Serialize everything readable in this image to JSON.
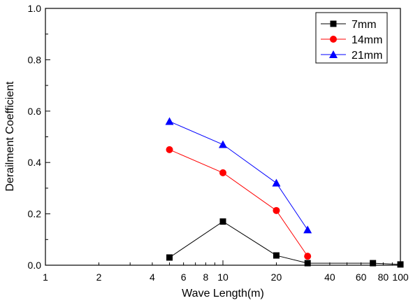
{
  "chart_data": {
    "type": "line",
    "title": "",
    "xlabel": "Wave Length(m)",
    "ylabel": "Derailment Coefficient",
    "x_scale": "log",
    "xlim": [
      1,
      100
    ],
    "ylim": [
      0.0,
      1.0
    ],
    "x_ticks": [
      {
        "value": 1,
        "label": "1"
      },
      {
        "value": 2,
        "label": "2"
      },
      {
        "value": 4,
        "label": "4"
      },
      {
        "value": 6,
        "label": "6"
      },
      {
        "value": 8,
        "label": "8"
      },
      {
        "value": 10,
        "label": "10"
      },
      {
        "value": 20,
        "label": "20"
      },
      {
        "value": 40,
        "label": "40"
      },
      {
        "value": 60,
        "label": "60"
      },
      {
        "value": 80,
        "label": "80"
      },
      {
        "value": 100,
        "label": "100"
      }
    ],
    "y_ticks": [
      {
        "value": 0.0,
        "label": "0.0"
      },
      {
        "value": 0.2,
        "label": "0.2"
      },
      {
        "value": 0.4,
        "label": "0.4"
      },
      {
        "value": 0.6,
        "label": "0.6"
      },
      {
        "value": 0.8,
        "label": "0.8"
      },
      {
        "value": 1.0,
        "label": "1.0"
      }
    ],
    "grid": false,
    "legend_position": "top-right",
    "series": [
      {
        "name": "7mm",
        "color": "#000000",
        "marker": "square",
        "x": [
          5,
          10,
          20,
          30,
          70,
          100
        ],
        "y": [
          0.03,
          0.17,
          0.038,
          0.008,
          0.008,
          0.003
        ]
      },
      {
        "name": "14mm",
        "color": "#ff0000",
        "marker": "circle",
        "x": [
          5,
          10,
          20,
          30
        ],
        "y": [
          0.45,
          0.36,
          0.213,
          0.035
        ]
      },
      {
        "name": "21mm",
        "color": "#0000ff",
        "marker": "triangle",
        "x": [
          5,
          10,
          20,
          30
        ],
        "y": [
          0.56,
          0.47,
          0.32,
          0.138
        ]
      }
    ]
  }
}
